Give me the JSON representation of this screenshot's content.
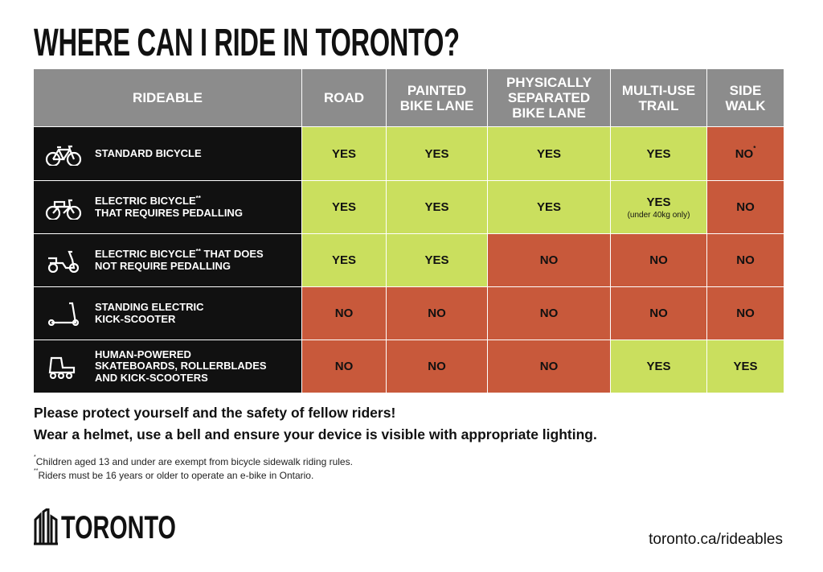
{
  "header": {
    "title": "WHERE CAN I RIDE IN TORONTO?"
  },
  "table": {
    "columns": [
      "RIDEABLE",
      "ROAD",
      "PAINTED BIKE LANE",
      "PHYSICALLY SEPARATED BIKE LANE",
      "MULTI-USE TRAIL",
      "SIDE WALK"
    ],
    "rows": [
      {
        "label": [
          [
            "STANDARD BICYCLE"
          ]
        ],
        "cells": [
          {
            "text": "YES",
            "fill": "#cadf5e"
          },
          {
            "text": "YES",
            "fill": "#cadf5e"
          },
          {
            "text": "YES",
            "fill": "#cadf5e"
          },
          {
            "text": "YES",
            "fill": "#cadf5e"
          },
          {
            "text": "NO",
            "sup": "*",
            "fill": "#c8593b"
          }
        ]
      },
      {
        "label": [
          [
            "ELECTRIC BICYCLE",
            {
              "sup": "**"
            }
          ],
          [
            "THAT REQUIRES PEDALLING"
          ]
        ],
        "cells": [
          {
            "text": "YES",
            "fill": "#cadf5e"
          },
          {
            "text": "YES",
            "fill": "#cadf5e"
          },
          {
            "text": "YES",
            "fill": "#cadf5e"
          },
          {
            "text": "YES",
            "note": "(under 40kg only)",
            "fill": "#cadf5e"
          },
          {
            "text": "NO",
            "fill": "#c8593b"
          }
        ]
      },
      {
        "label": [
          [
            "ELECTRIC BICYCLE",
            {
              "sup": "**"
            },
            " THAT DOES"
          ],
          [
            "NOT REQUIRE PEDALLING"
          ]
        ],
        "cells": [
          {
            "text": "YES",
            "fill": "#cadf5e"
          },
          {
            "text": "YES",
            "fill": "#cadf5e"
          },
          {
            "text": "NO",
            "fill": "#c8593b"
          },
          {
            "text": "NO",
            "fill": "#c8593b"
          },
          {
            "text": "NO",
            "fill": "#c8593b"
          }
        ]
      },
      {
        "label": [
          [
            "STANDING ELECTRIC"
          ],
          [
            "KICK-SCOOTER"
          ]
        ],
        "cells": [
          {
            "text": "NO",
            "fill": "#c8593b"
          },
          {
            "text": "NO",
            "fill": "#c8593b"
          },
          {
            "text": "NO",
            "fill": "#c8593b"
          },
          {
            "text": "NO",
            "fill": "#c8593b"
          },
          {
            "text": "NO",
            "fill": "#c8593b"
          }
        ]
      },
      {
        "label": [
          [
            "HUMAN-POWERED"
          ],
          [
            "SKATEBOARDS, ROLLERBLADES"
          ],
          [
            "AND KICK-SCOOTERS"
          ]
        ],
        "cells": [
          {
            "text": "NO",
            "fill": "#c8593b"
          },
          {
            "text": "NO",
            "fill": "#c8593b"
          },
          {
            "text": "NO",
            "fill": "#c8593b"
          },
          {
            "text": "YES",
            "fill": "#cadf5e"
          },
          {
            "text": "YES",
            "fill": "#cadf5e"
          }
        ]
      }
    ]
  },
  "message": [
    "Please protect yourself and the safety of fellow riders!",
    "Wear a helmet, use a bell and ensure your device is visible with appropriate lighting."
  ],
  "footnotes": [
    {
      "sup": "*",
      "text": "Children aged 13 and under are exempt from bicycle sidewalk riding rules."
    },
    {
      "sup": "**",
      "text": "Riders must be 16 years or older to operate an e-bike in Ontario."
    }
  ],
  "footer": {
    "logo": "TORONTO",
    "url": "toronto.ca/rideables"
  }
}
